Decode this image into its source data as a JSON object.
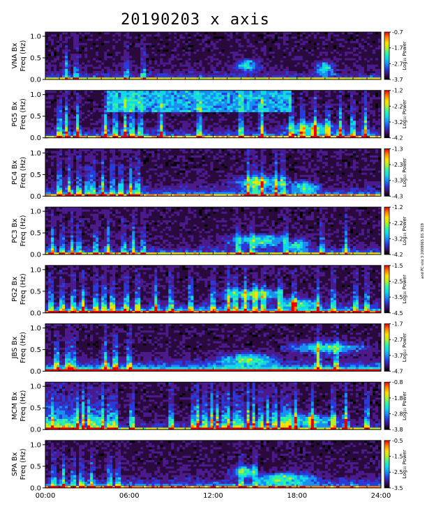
{
  "title": "20190203 x axis",
  "side_note": "and PC site 3 200806S DS 3019",
  "colorbar_title": "Log₁₀ Power",
  "x_ticks": [
    "00:00",
    "06:00",
    "12:00",
    "18:00",
    "24:00"
  ],
  "y_ticks": [
    "0.0",
    "0.5",
    "1.0"
  ],
  "colormap": [
    "#000000",
    "#2a0a3c",
    "#4b1a8c",
    "#2a3ad8",
    "#1a8ff2",
    "#14d7e8",
    "#35f2a0",
    "#b6ef2a",
    "#ffe000",
    "#ff8000",
    "#e60000"
  ],
  "chart_data": {
    "type": "heatmap",
    "x_range": [
      "00:00",
      "24:00"
    ],
    "y_range": [
      0,
      1.0
    ],
    "panels": [
      {
        "station": "VNA",
        "name_label": "VNA Bx",
        "freq_label": "Freq (Hz)",
        "cb_ticks": [
          "-0.7",
          "-1.7",
          "-2.7",
          "-3.7"
        ],
        "bursts": [
          1.5,
          2.2,
          5.8,
          7.0
        ],
        "patches": [
          [
            14.5,
            0.3,
            1.2
          ],
          [
            20.0,
            0.25,
            1.0
          ]
        ],
        "base": 0.28,
        "top": 0.55
      },
      {
        "station": "PG5",
        "name_label": "PG5 Bx",
        "freq_label": "Freq (Hz)",
        "cb_ticks": [
          "-1.2",
          "-2.2",
          "-3.2",
          "-4.2"
        ],
        "bursts": [
          1.0,
          1.5,
          2.3,
          4.3,
          5.0,
          5.7,
          6.2,
          6.8,
          8.3,
          11.0,
          14.0,
          15.5,
          17.6,
          18.4,
          19.3,
          20.2,
          21.1,
          22.0,
          22.9
        ],
        "patches": [
          [
            19.0,
            0.2,
            2.5
          ]
        ],
        "base": 0.35,
        "top": 0.9,
        "band": [
          4.5,
          17.5,
          0.95
        ]
      },
      {
        "station": "PC4",
        "name_label": "PC4 Bx",
        "freq_label": "Freq (Hz)",
        "cb_ticks": [
          "-1.3",
          "-2.3",
          "-3.3",
          "-4.3"
        ],
        "bursts": [
          1.0,
          1.7,
          2.4,
          3.0,
          3.4,
          4.1,
          4.8,
          5.4,
          6.1,
          6.6,
          14.5,
          15.0,
          15.5,
          16.5,
          17.0
        ],
        "patches": [
          [
            15.5,
            0.3,
            3.0
          ],
          [
            18.5,
            0.2,
            1.5
          ]
        ],
        "base": 0.4,
        "top": 0.75
      },
      {
        "station": "PC3",
        "name_label": "PC3 Bx",
        "freq_label": "Freq (Hz)",
        "cb_ticks": [
          "-1.2",
          "-2.2",
          "-3.2",
          "-4.2"
        ],
        "bursts": [
          0.5,
          1.2,
          1.9,
          2.4,
          3.6,
          4.5,
          5.6,
          6.3,
          7.0,
          13.8,
          14.8,
          17.2,
          19.8,
          21.5
        ],
        "patches": [
          [
            15.5,
            0.3,
            3.5
          ],
          [
            18.0,
            0.2,
            1.2
          ]
        ],
        "base": 0.32,
        "top": 0.6
      },
      {
        "station": "PG2",
        "name_label": "PG2 Bx",
        "freq_label": "Freq (Hz)",
        "cb_ticks": [
          "-1.5",
          "-2.5",
          "-3.5",
          "-4.5"
        ],
        "bursts": [
          0.4,
          1.2,
          2.0,
          2.7,
          3.6,
          4.2,
          4.8,
          5.8,
          6.6,
          7.9,
          9.0,
          10.4,
          12.0,
          13.1,
          13.6,
          14.3,
          15.0,
          15.6,
          16.8,
          17.8,
          19.5,
          20.6,
          22.2,
          23.0
        ],
        "patches": [
          [
            15.0,
            0.4,
            3.5
          ],
          [
            18.0,
            0.2,
            2.0
          ]
        ],
        "base": 0.5,
        "top": 0.85
      },
      {
        "station": "JBS",
        "name_label": "JBS Bx",
        "freq_label": "Freq (Hz)",
        "cb_ticks": [
          "-1.7",
          "-2.7",
          "-3.7",
          "-4.7"
        ],
        "bursts": [
          0.8,
          1.6,
          2.0,
          4.3,
          5.0,
          6.0,
          19.5,
          20.8
        ],
        "patches": [
          [
            20.0,
            0.5,
            4.0
          ],
          [
            14.5,
            0.25,
            3.0
          ]
        ],
        "base": 0.65,
        "top": 0.85
      },
      {
        "station": "MCM",
        "name_label": "MCM Bx",
        "freq_label": "Freq (Hz)",
        "cb_ticks": [
          "-0.8",
          "-1.8",
          "-2.8",
          "-3.8"
        ],
        "bursts": [
          0.2,
          0.5,
          0.8,
          1.2,
          1.6,
          2.0,
          2.3,
          2.7,
          3.1,
          3.4,
          3.8,
          4.1,
          4.6,
          5.0,
          6.2,
          9.0,
          10.6,
          10.9,
          11.4,
          11.9,
          12.3,
          12.8,
          13.1,
          13.6,
          14.0,
          14.5,
          14.9,
          15.4,
          15.9,
          16.4,
          17.0,
          17.4,
          17.9,
          19.1,
          20.6,
          21.5,
          23.0
        ],
        "patches": [
          [
            19.0,
            0.2,
            3.0
          ]
        ],
        "base": 0.25,
        "top": 0.95
      },
      {
        "station": "SPA",
        "name_label": "SPA Bx",
        "freq_label": "Freq (Hz)",
        "cb_ticks": [
          "-0.5",
          "-1.5",
          "-2.5",
          "-3.5"
        ],
        "bursts": [
          0.6,
          1.3,
          2.0,
          2.6,
          3.3,
          4.6,
          5.2,
          14.0,
          15.0
        ],
        "patches": [
          [
            17.0,
            0.2,
            3.0
          ],
          [
            14.3,
            0.35,
            1.5
          ]
        ],
        "base": 0.45,
        "top": 0.6
      }
    ]
  }
}
